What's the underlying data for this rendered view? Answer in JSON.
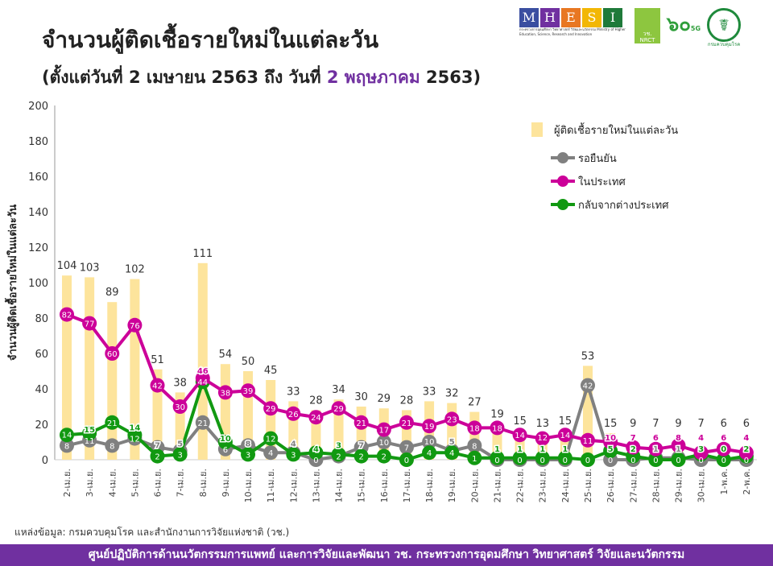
{
  "header": {
    "title": "จำนวนผู้ติดเชื้อรายใหม่ในแต่ละวัน",
    "subtitle_pre": "(ตั้งแต่วันที่ 2 เมษายน 2563 ถึง วันที่ ",
    "subtitle_highlight": "2 พฤษภาคม",
    "subtitle_post": " 2563)",
    "highlight_color": "#7030a0"
  },
  "logos": {
    "mhesi_letters": [
      "M",
      "H",
      "E",
      "S",
      "I"
    ],
    "mhesi_colors": [
      "#3a4ea0",
      "#7030a0",
      "#e87722",
      "#f2b705",
      "#1f7a3a"
    ],
    "mhesi_caption": "กระทรวงการอุดมศึกษา วิทยาศาสตร์ วิจัยและนวัตกรรม Ministry of Higher Education, Science, Research and Innovation",
    "nrct": "วช. NRCT",
    "v5g": "๖๐",
    "v5g_suffix": "5G",
    "ddc": "กรมควบคุมโรค"
  },
  "chart_data": {
    "type": "bar+line",
    "ylabel": "จำนวนผู้ติดเชื้อรายใหม่ในแต่ละวัน",
    "ylim": [
      0,
      200
    ],
    "yticks": [
      0,
      20,
      40,
      60,
      80,
      100,
      120,
      140,
      160,
      180,
      200
    ],
    "categories": [
      "2-เม.ย.",
      "3-เม.ย.",
      "4-เม.ย.",
      "5-เม.ย.",
      "6-เม.ย.",
      "7-เม.ย.",
      "8-เม.ย.",
      "9-เม.ย.",
      "10-เม.ย.",
      "11-เม.ย.",
      "12-เม.ย.",
      "13-เม.ย.",
      "14-เม.ย.",
      "15-เม.ย.",
      "16-เม.ย.",
      "17-เม.ย.",
      "18-เม.ย.",
      "19-เม.ย.",
      "20-เม.ย.",
      "21-เม.ย.",
      "22-เม.ย.",
      "23-เม.ย.",
      "24-เม.ย.",
      "25-เม.ย.",
      "26-เม.ย.",
      "27-เม.ย.",
      "28-เม.ย.",
      "29-เม.ย.",
      "30-เม.ย.",
      "1-พ.ค.",
      "2-พ.ค."
    ],
    "legend_position": "top-right",
    "series": [
      {
        "name": "ผู้ติดเชื้อรายใหม่ในแต่ละวัน",
        "kind": "bar",
        "color": "#fde49c",
        "values": [
          104,
          103,
          89,
          102,
          51,
          38,
          111,
          54,
          50,
          45,
          33,
          28,
          34,
          30,
          29,
          28,
          33,
          32,
          27,
          19,
          15,
          13,
          15,
          53,
          15,
          9,
          7,
          9,
          7,
          6,
          6
        ]
      },
      {
        "name": "รอยืนยัน",
        "kind": "line",
        "color": "#808080",
        "values": [
          8,
          11,
          8,
          12,
          7,
          5,
          21,
          6,
          8,
          4,
          4,
          0,
          2,
          7,
          10,
          7,
          10,
          5,
          8,
          0,
          0,
          0,
          0,
          42,
          0,
          0,
          1,
          1,
          0,
          0,
          0
        ]
      },
      {
        "name": "ในประเทศ",
        "kind": "line",
        "color": "#cc0099",
        "values": [
          82,
          77,
          60,
          76,
          42,
          30,
          46,
          38,
          39,
          29,
          26,
          24,
          29,
          21,
          17,
          21,
          19,
          23,
          18,
          18,
          14,
          12,
          14,
          11,
          10,
          7,
          6,
          8,
          4,
          6,
          4
        ]
      },
      {
        "name": "กลับจากต่างประเทศ",
        "kind": "line",
        "color": "#119911",
        "values": [
          14,
          15,
          21,
          14,
          2,
          3,
          44,
          10,
          3,
          12,
          3,
          4,
          3,
          2,
          2,
          0,
          4,
          4,
          1,
          1,
          1,
          1,
          1,
          0,
          5,
          2,
          0,
          0,
          3,
          0,
          2
        ]
      }
    ]
  },
  "source": "แหล่งข้อมูล: กรมควบคุมโรค และสำนักงานการวิจัยแห่งชาติ (วช.)",
  "footer": "ศูนย์ปฏิบัติการด้านนวัตกรรมการแพทย์ และการวิจัยและพัฒนา   วช.   กระทรวงการอุดมศึกษา วิทยาศาสตร์ วิจัยและนวัตกรรม"
}
